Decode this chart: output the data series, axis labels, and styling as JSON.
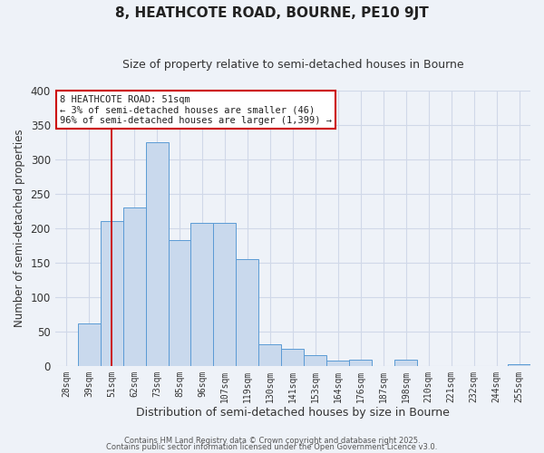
{
  "title": "8, HEATHCOTE ROAD, BOURNE, PE10 9JT",
  "subtitle": "Size of property relative to semi-detached houses in Bourne",
  "xlabel": "Distribution of semi-detached houses by size in Bourne",
  "ylabel": "Number of semi-detached properties",
  "bin_labels": [
    "28sqm",
    "39sqm",
    "51sqm",
    "62sqm",
    "73sqm",
    "85sqm",
    "96sqm",
    "107sqm",
    "119sqm",
    "130sqm",
    "141sqm",
    "153sqm",
    "164sqm",
    "176sqm",
    "187sqm",
    "198sqm",
    "210sqm",
    "221sqm",
    "232sqm",
    "244sqm",
    "255sqm"
  ],
  "bar_values": [
    0,
    62,
    210,
    230,
    325,
    183,
    208,
    208,
    155,
    32,
    25,
    15,
    8,
    9,
    0,
    9,
    0,
    0,
    0,
    0,
    2
  ],
  "bar_color": "#c9d9ed",
  "bar_edge_color": "#5b9bd5",
  "vline_x": 2,
  "vline_color": "#cc0000",
  "ylim": [
    0,
    400
  ],
  "yticks": [
    0,
    50,
    100,
    150,
    200,
    250,
    300,
    350,
    400
  ],
  "annotation_title": "8 HEATHCOTE ROAD: 51sqm",
  "annotation_line1": "← 3% of semi-detached houses are smaller (46)",
  "annotation_line2": "96% of semi-detached houses are larger (1,399) →",
  "annotation_box_color": "#ffffff",
  "annotation_border_color": "#cc0000",
  "footer_line1": "Contains HM Land Registry data © Crown copyright and database right 2025.",
  "footer_line2": "Contains public sector information licensed under the Open Government Licence v3.0.",
  "bg_color": "#eef2f8",
  "grid_color": "#d0d8e8",
  "title_fontsize": 11,
  "subtitle_fontsize": 9,
  "xlabel_fontsize": 9,
  "ylabel_fontsize": 8.5
}
